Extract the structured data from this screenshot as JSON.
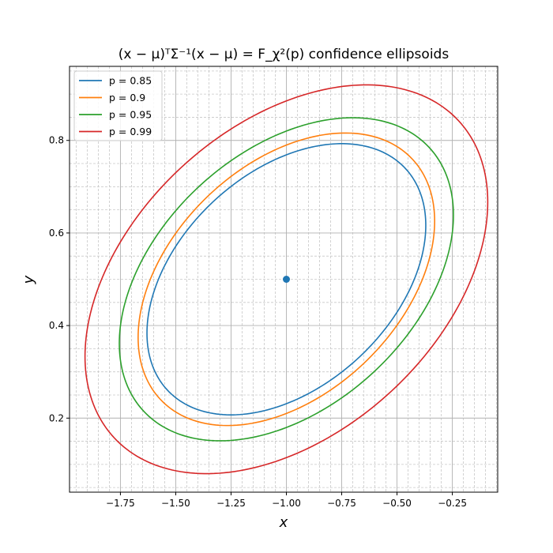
{
  "chart_data": {
    "type": "line",
    "title": "(x − μ)ᵀΣ⁻¹(x − μ) = F_χ²(p) confidence ellipsoids",
    "xlabel": "x",
    "ylabel": "y",
    "xlim": [
      -1.98,
      -0.045
    ],
    "ylim": [
      0.04,
      0.96
    ],
    "xticks": [
      -1.75,
      -1.5,
      -1.25,
      -1.0,
      -0.75,
      -0.5,
      -0.25
    ],
    "xtick_labels": [
      "−1.75",
      "−1.50",
      "−1.25",
      "−1.00",
      "−0.75",
      "−0.50",
      "−0.25"
    ],
    "yticks": [
      0.2,
      0.4,
      0.6,
      0.8
    ],
    "ytick_labels": [
      "0.2",
      "0.4",
      "0.6",
      "0.8"
    ],
    "grid": true,
    "minor_grid": true,
    "legend_position": "top-left",
    "center": {
      "x": -1.0,
      "y": 0.5
    },
    "series": [
      {
        "name": "p = 0.85",
        "color": "#1f77b4",
        "x_extent": [
          -1.63,
          -0.37
        ],
        "y_extent": [
          0.207,
          0.793
        ]
      },
      {
        "name": "p = 0.9",
        "color": "#ff7f0e",
        "x_extent": [
          -1.67,
          -0.33
        ],
        "y_extent": [
          0.184,
          0.816
        ]
      },
      {
        "name": "p = 0.95",
        "color": "#2ca02c",
        "x_extent": [
          -1.755,
          -0.245
        ],
        "y_extent": [
          0.151,
          0.849
        ]
      },
      {
        "name": "p = 0.99",
        "color": "#d62728",
        "x_extent": [
          -1.91,
          -0.09
        ],
        "y_extent": [
          0.08,
          0.92
        ]
      }
    ]
  }
}
